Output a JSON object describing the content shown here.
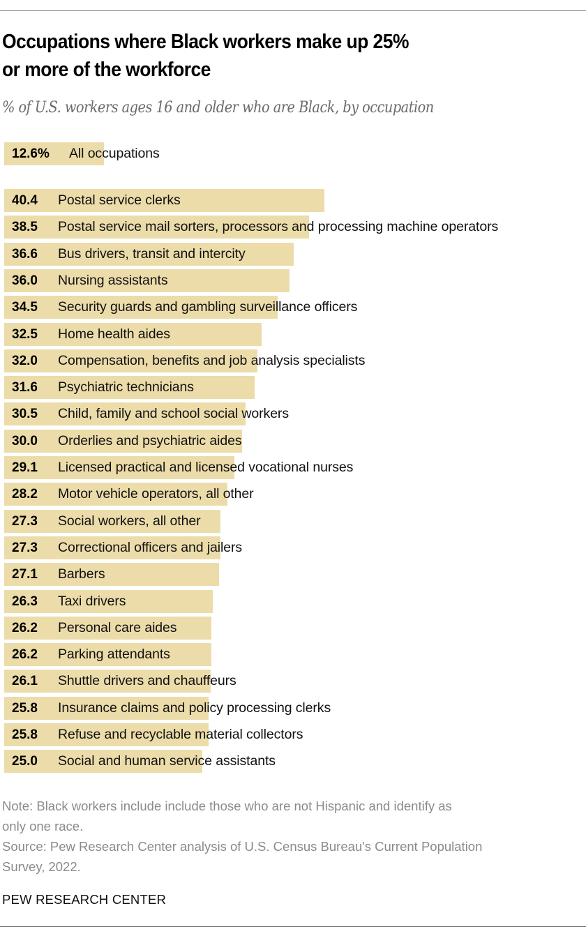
{
  "title_line1": "Occupations where Black workers make up 25%",
  "title_line2": "or more of the workforce",
  "subtitle": "% of U.S. workers ages 16 and older who are Black, by occupation",
  "notes": {
    "note_line1": "Note: Black workers include include those who are not Hispanic and identify as",
    "note_line2": "only one race.",
    "source_line1": "Source: Pew Research Center analysis of U.S. Census Bureau's Current Population",
    "source_line2": "Survey, 2022."
  },
  "brand": "PEW RESEARCH CENTER",
  "colors": {
    "bar": "#ecdcaa",
    "title": "#000000",
    "subtitle": "#6b6b6b",
    "notes": "#8a8a8a"
  },
  "chart_data": {
    "type": "bar",
    "orientation": "horizontal",
    "title": "Occupations where Black workers make up 25% or more of the workforce",
    "subtitle": "% of U.S. workers ages 16 and older who are Black, by occupation",
    "xlabel": "",
    "ylabel": "",
    "grid": false,
    "legend": null,
    "total": {
      "label": "All occupations",
      "value": 12.6,
      "display": "12.6%"
    },
    "categories": [
      "Postal service clerks",
      "Postal service mail sorters, processors and processing machine operators",
      "Bus drivers, transit and intercity",
      "Nursing assistants",
      "Security guards and gambling surveillance officers",
      "Home health aides",
      "Compensation, benefits and job analysis specialists",
      "Psychiatric technicians",
      "Child, family and school social workers",
      "Orderlies and psychiatric aides",
      "Licensed practical and licensed vocational nurses",
      "Motor vehicle operators, all other",
      "Social workers, all other",
      "Correctional officers and jailers",
      "Barbers",
      "Taxi drivers",
      "Personal care aides",
      "Parking attendants",
      "Shuttle drivers and chauffeurs",
      "Insurance claims and policy processing clerks",
      "Refuse and recyclable material collectors",
      "Social and human service assistants"
    ],
    "values": [
      40.4,
      38.5,
      36.6,
      36.0,
      34.5,
      32.5,
      32.0,
      31.6,
      30.5,
      30.0,
      29.1,
      28.2,
      27.3,
      27.3,
      27.1,
      26.3,
      26.2,
      26.2,
      26.1,
      25.8,
      25.8,
      25.0
    ],
    "display_values": [
      "40.4",
      "38.5",
      "36.6",
      "36.0",
      "34.5",
      "32.5",
      "32.0",
      "31.6",
      "30.5",
      "30.0",
      "29.1",
      "28.2",
      "27.3",
      "27.3",
      "27.1",
      "26.3",
      "26.2",
      "26.2",
      "26.1",
      "25.8",
      "25.8",
      "25.0"
    ]
  }
}
